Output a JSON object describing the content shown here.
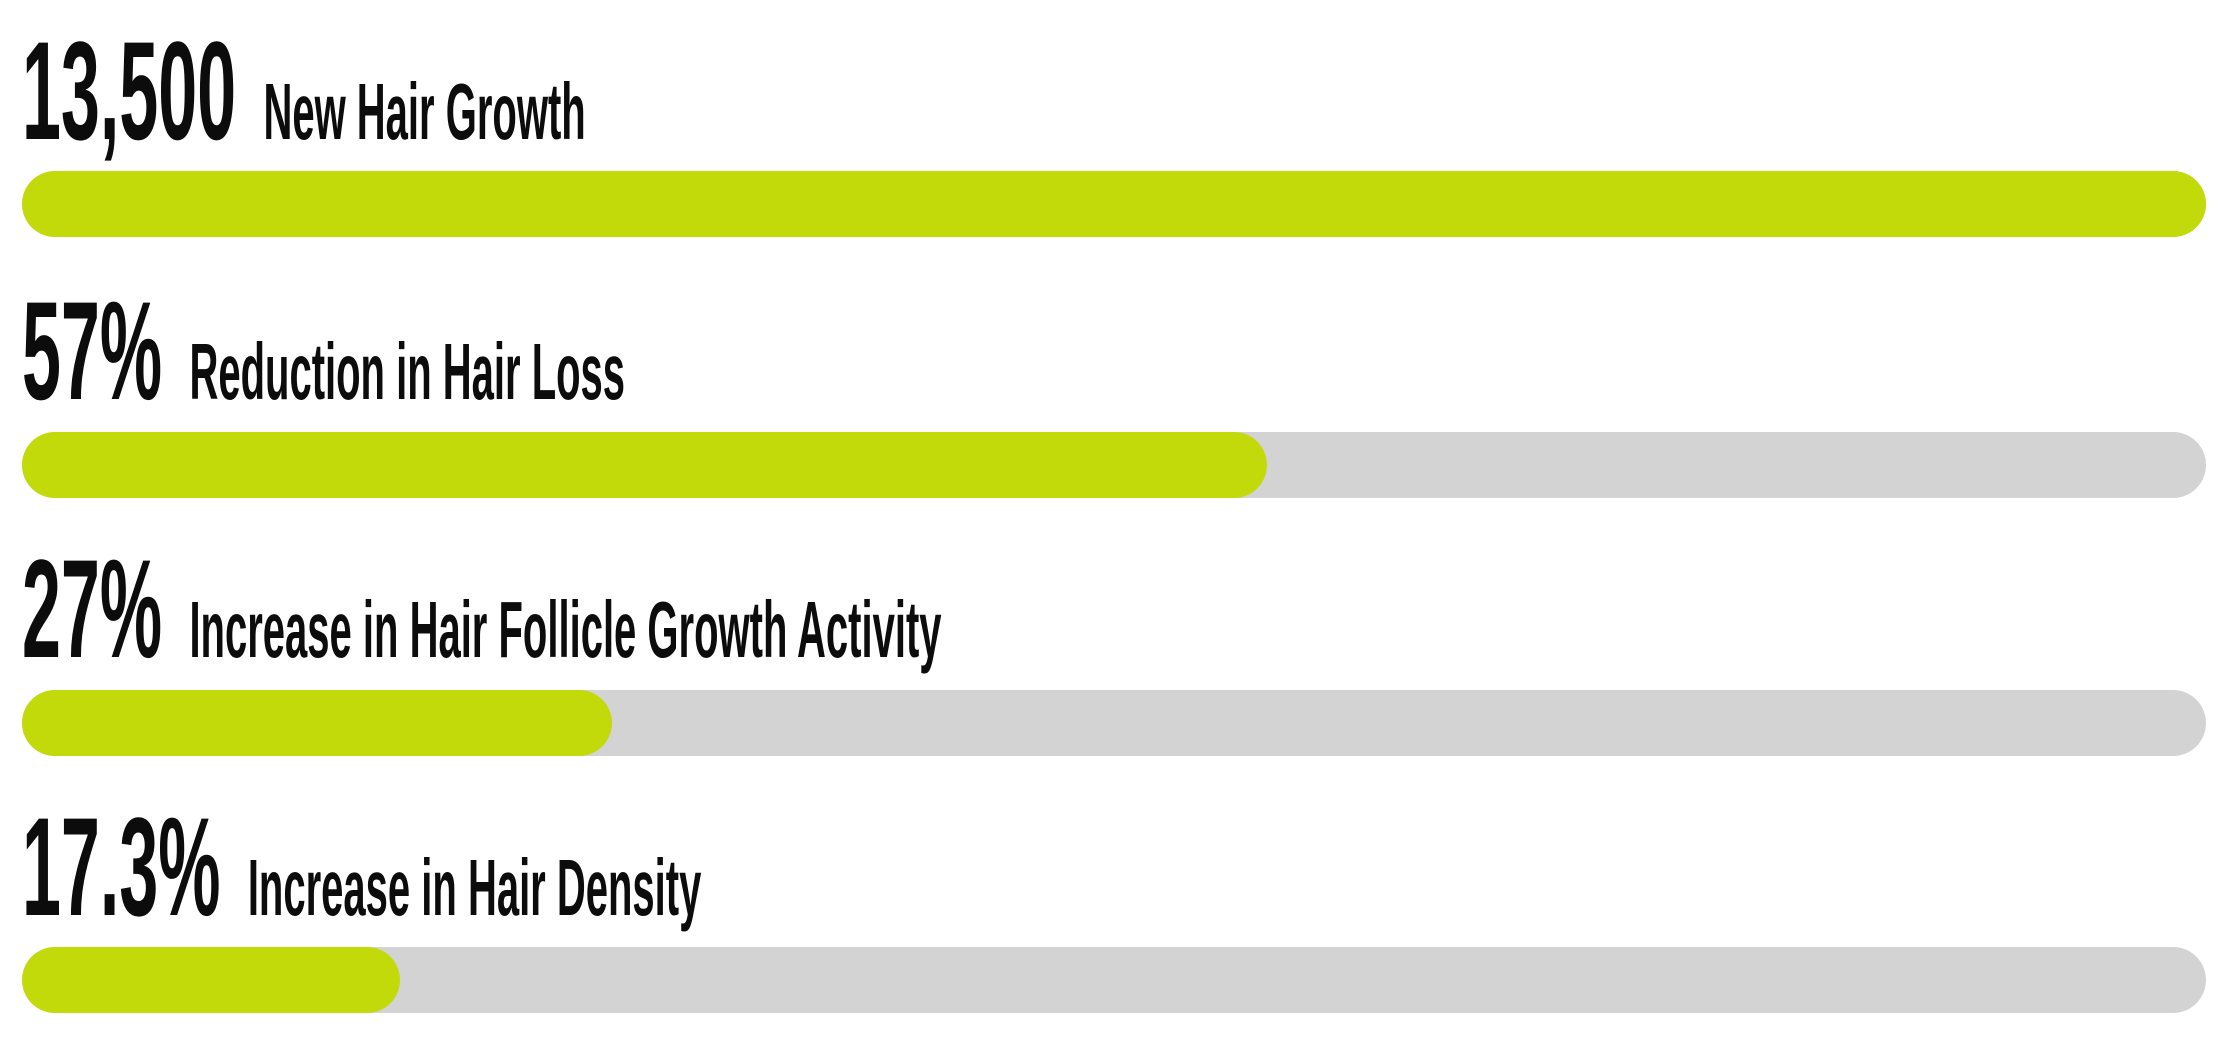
{
  "page": {
    "background": "#ffffff"
  },
  "chart_data": {
    "type": "bar",
    "orientation": "horizontal-progress",
    "xlim": [
      0,
      100
    ],
    "grid": false,
    "legend": false,
    "colors": {
      "fill": "#c3da0a",
      "track": "#d3d3d3",
      "text": "#0c0c0c"
    },
    "rows": [
      {
        "value_label": "13,500",
        "label": "New Hair Growth",
        "value": 13500,
        "percent_fill": 100
      },
      {
        "value_label": "57%",
        "label": "Reduction in Hair Loss",
        "value": 57,
        "percent_fill": 57
      },
      {
        "value_label": "27%",
        "label": "Increase in Hair Follicle Growth Activity",
        "value": 27,
        "percent_fill": 27
      },
      {
        "value_label": "17.3%",
        "label": "Increase in Hair Density",
        "value": 17.3,
        "percent_fill": 17.3
      }
    ]
  }
}
